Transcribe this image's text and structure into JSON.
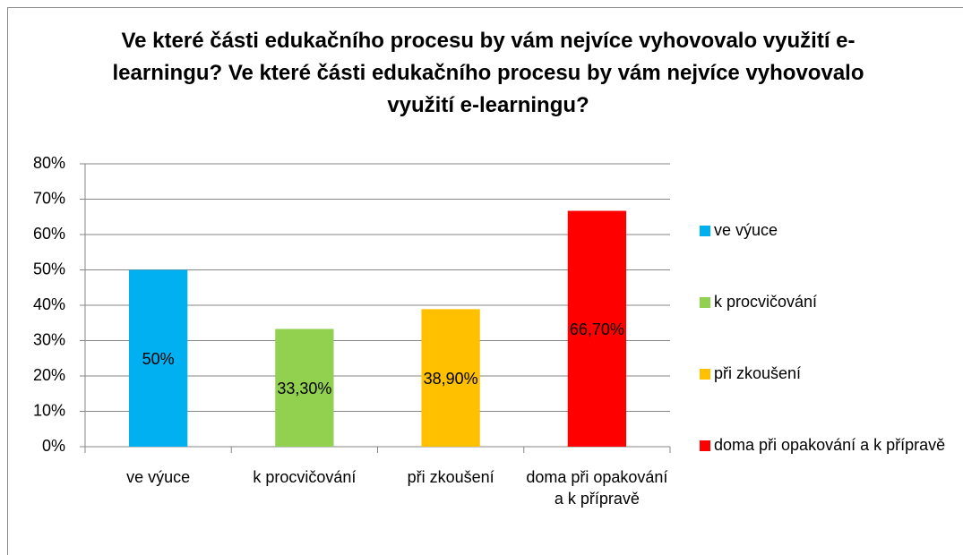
{
  "chart_data": {
    "type": "bar",
    "title": "Ve které části edukačního procesu by vám nejvíce vyhovovalo využití e-learningu? Ve které části edukačního procesu by vám nejvíce vyhovovalo využití e-learningu?",
    "categories": [
      "ve výuce",
      "k procvičování",
      "při zkoušení",
      "doma při opakování a k přípravě"
    ],
    "values": [
      50,
      33.3,
      38.9,
      66.7
    ],
    "value_labels": [
      "50%",
      "33,30%",
      "38,90%",
      "66,70%"
    ],
    "colors": [
      "#00b0f0",
      "#92d050",
      "#ffc000",
      "#ff0000"
    ],
    "ylim": [
      0,
      80
    ],
    "yticks": [
      {
        "value": 0,
        "label": "0%"
      },
      {
        "value": 10,
        "label": "10%"
      },
      {
        "value": 20,
        "label": "20%"
      },
      {
        "value": 30,
        "label": "30%"
      },
      {
        "value": 40,
        "label": "40%"
      },
      {
        "value": 50,
        "label": "50%"
      },
      {
        "value": 60,
        "label": "60%"
      },
      {
        "value": 70,
        "label": "70%"
      },
      {
        "value": 80,
        "label": "80%"
      }
    ],
    "grid": true,
    "legend": "right"
  }
}
